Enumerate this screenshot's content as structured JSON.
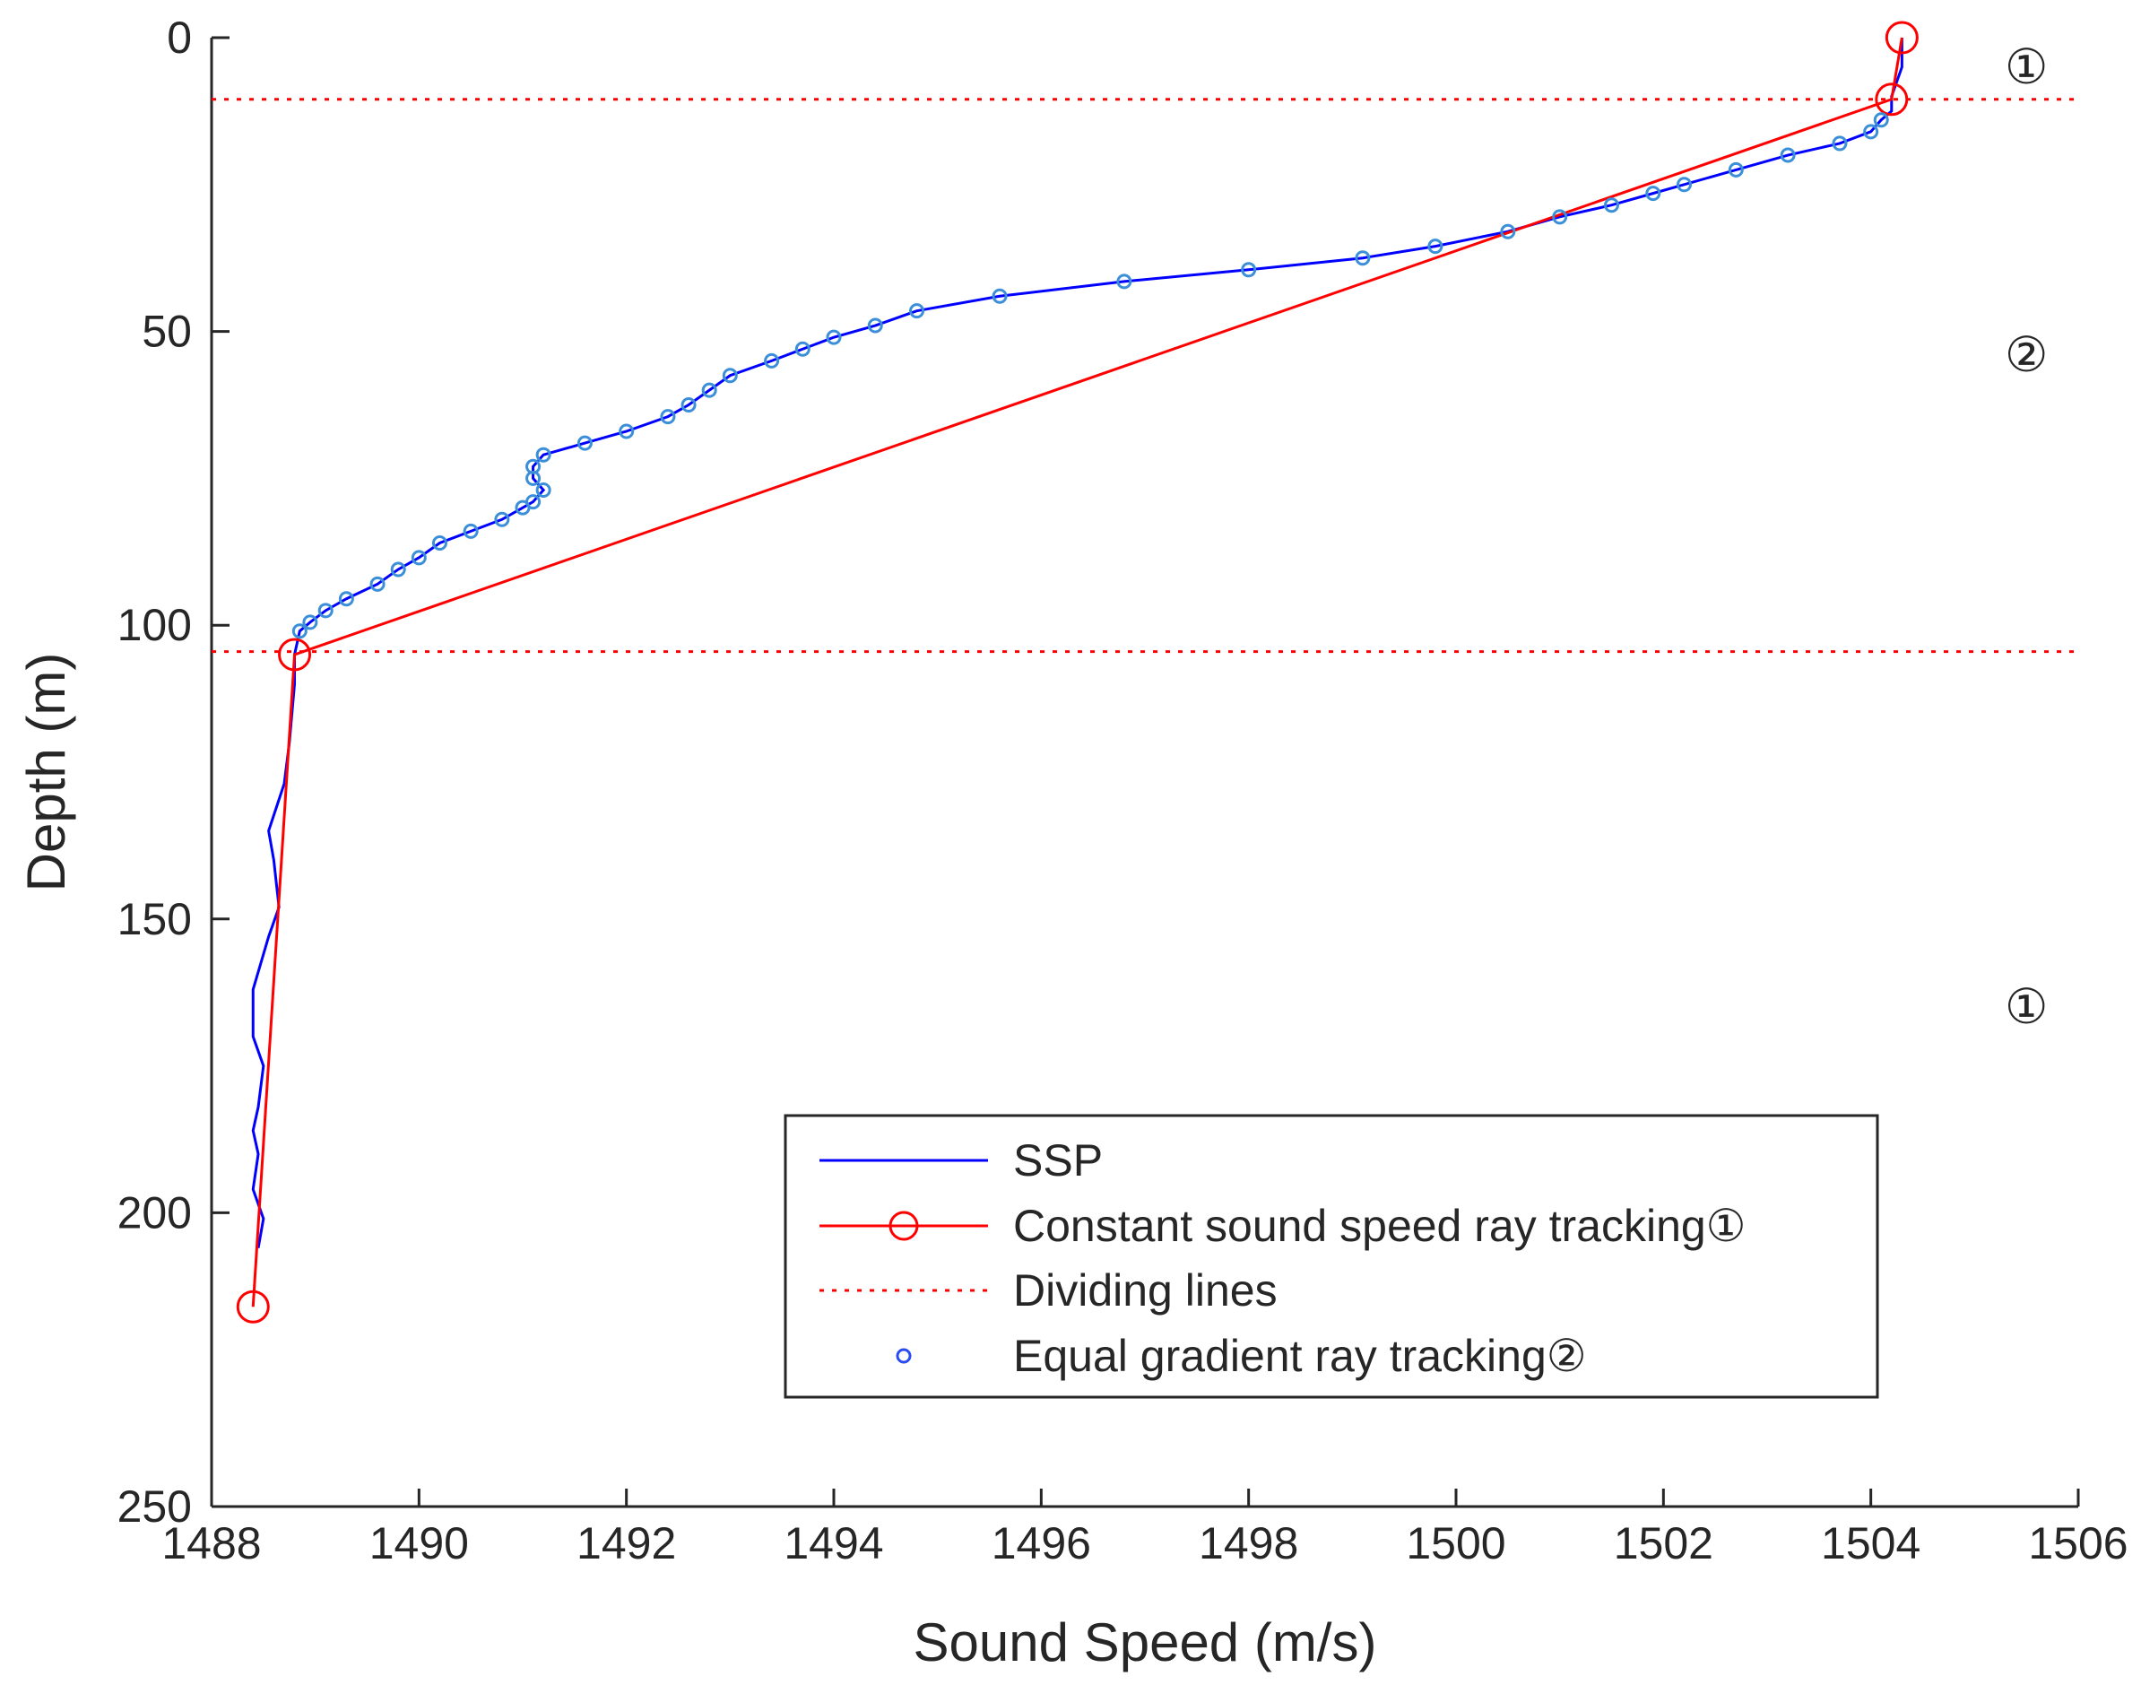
{
  "chart_data": {
    "type": "line",
    "xlabel": "Sound Speed (m/s)",
    "ylabel": "Depth (m)",
    "xlim": [
      1488,
      1506
    ],
    "ylim": [
      0,
      250
    ],
    "y_reversed": true,
    "x_ticks": [
      "1488",
      "1490",
      "1492",
      "1494",
      "1496",
      "1498",
      "1500",
      "1502",
      "1504",
      "1506"
    ],
    "y_ticks": [
      "0",
      "50",
      "100",
      "150",
      "200",
      "250"
    ],
    "series": [
      {
        "name": "SSP",
        "color": "#0000ff",
        "points": [
          [
            1504.3,
            0
          ],
          [
            1504.3,
            5
          ],
          [
            1504.2,
            10
          ],
          [
            1504.2,
            12.5
          ],
          [
            1504.1,
            14
          ],
          [
            1504.0,
            16
          ],
          [
            1503.7,
            18
          ],
          [
            1503.2,
            20
          ],
          [
            1502.7,
            22.5
          ],
          [
            1502.2,
            25
          ],
          [
            1501.9,
            26.5
          ],
          [
            1501.5,
            28.5
          ],
          [
            1501.0,
            30.5
          ],
          [
            1500.5,
            33
          ],
          [
            1499.8,
            35.5
          ],
          [
            1499.1,
            37.5
          ],
          [
            1498.0,
            39.5
          ],
          [
            1496.8,
            41.5
          ],
          [
            1495.6,
            44
          ],
          [
            1494.8,
            46.5
          ],
          [
            1494.4,
            49
          ],
          [
            1494.0,
            51
          ],
          [
            1493.7,
            53
          ],
          [
            1493.4,
            55
          ],
          [
            1493.0,
            57.5
          ],
          [
            1492.8,
            60
          ],
          [
            1492.6,
            62.5
          ],
          [
            1492.4,
            64.5
          ],
          [
            1492.0,
            67
          ],
          [
            1491.6,
            69
          ],
          [
            1491.2,
            71
          ],
          [
            1491.1,
            73
          ],
          [
            1491.1,
            75
          ],
          [
            1491.2,
            77
          ],
          [
            1491.1,
            79
          ],
          [
            1491.0,
            80
          ],
          [
            1490.8,
            82
          ],
          [
            1490.5,
            84
          ],
          [
            1490.2,
            86
          ],
          [
            1490.0,
            88.5
          ],
          [
            1489.8,
            90.5
          ],
          [
            1489.6,
            93
          ],
          [
            1489.3,
            95.5
          ],
          [
            1489.1,
            97.5
          ],
          [
            1488.95,
            99.5
          ],
          [
            1488.85,
            101
          ],
          [
            1488.8,
            105
          ],
          [
            1488.8,
            110
          ],
          [
            1488.75,
            120
          ],
          [
            1488.7,
            127
          ],
          [
            1488.55,
            135
          ],
          [
            1488.6,
            140
          ],
          [
            1488.65,
            148
          ],
          [
            1488.55,
            153
          ],
          [
            1488.4,
            162
          ],
          [
            1488.4,
            170
          ],
          [
            1488.5,
            175
          ],
          [
            1488.45,
            182
          ],
          [
            1488.4,
            186
          ],
          [
            1488.45,
            190
          ],
          [
            1488.4,
            196
          ],
          [
            1488.5,
            201
          ],
          [
            1488.45,
            206
          ]
        ]
      },
      {
        "name": "Constant sound speed ray tracking①",
        "color": "#ff0000",
        "points": [
          [
            1504.3,
            0
          ],
          [
            1504.2,
            10.5
          ],
          [
            1488.8,
            105
          ],
          [
            1488.4,
            216
          ]
        ]
      },
      {
        "name": "Dividing lines",
        "color": "#ff0000",
        "depths": [
          10.5,
          104.5
        ]
      },
      {
        "name": "Equal gradient ray tracking②",
        "color": "#3b8fd9",
        "points": [
          [
            1504.1,
            14
          ],
          [
            1504.0,
            16
          ],
          [
            1503.7,
            18
          ],
          [
            1503.2,
            20
          ],
          [
            1502.7,
            22.5
          ],
          [
            1502.2,
            25
          ],
          [
            1501.9,
            26.5
          ],
          [
            1501.5,
            28.5
          ],
          [
            1501.0,
            30.5
          ],
          [
            1500.5,
            33
          ],
          [
            1499.8,
            35.5
          ],
          [
            1499.1,
            37.5
          ],
          [
            1498.0,
            39.5
          ],
          [
            1496.8,
            41.5
          ],
          [
            1495.6,
            44
          ],
          [
            1494.8,
            46.5
          ],
          [
            1494.4,
            49
          ],
          [
            1494.0,
            51
          ],
          [
            1493.7,
            53
          ],
          [
            1493.4,
            55
          ],
          [
            1493.0,
            57.5
          ],
          [
            1492.8,
            60
          ],
          [
            1492.6,
            62.5
          ],
          [
            1492.4,
            64.5
          ],
          [
            1492.0,
            67
          ],
          [
            1491.6,
            69
          ],
          [
            1491.2,
            71
          ],
          [
            1491.1,
            73
          ],
          [
            1491.1,
            75
          ],
          [
            1491.2,
            77
          ],
          [
            1491.1,
            79
          ],
          [
            1491.0,
            80
          ],
          [
            1490.8,
            82
          ],
          [
            1490.5,
            84
          ],
          [
            1490.2,
            86
          ],
          [
            1490.0,
            88.5
          ],
          [
            1489.8,
            90.5
          ],
          [
            1489.6,
            93
          ],
          [
            1489.3,
            95.5
          ],
          [
            1489.1,
            97.5
          ],
          [
            1488.95,
            99.5
          ],
          [
            1488.85,
            101
          ]
        ]
      }
    ],
    "annotations": [
      {
        "text": "①",
        "x": 1505.5,
        "y": 5
      },
      {
        "text": "②",
        "x": 1505.5,
        "y": 54
      },
      {
        "text": "①",
        "x": 1505.5,
        "y": 165
      }
    ],
    "legend": {
      "position": "bottom-right",
      "entries": [
        "SSP",
        "Constant sound speed ray tracking①",
        "Dividing lines",
        "Equal gradient ray tracking②"
      ]
    }
  }
}
